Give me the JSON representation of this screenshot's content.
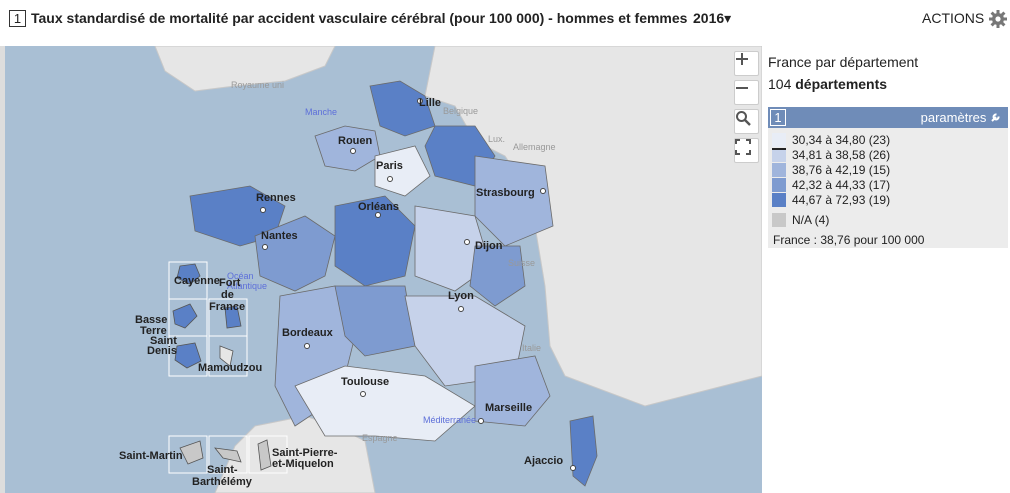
{
  "header": {
    "index": "1",
    "title": "Taux standardisé de mortalité par accident vasculaire cérébral (pour 100 000) - hommes et femmes",
    "year": "2016",
    "year_caret": "▾",
    "actions": "ACTIONS",
    "actions_icon": "gear-icon"
  },
  "map": {
    "controls": [
      "zoom-in",
      "zoom-out",
      "search",
      "fullscreen"
    ],
    "sea_labels": {
      "royaume_uni": "Royaume uni",
      "manche": "Manche",
      "belgique": "Belgique",
      "lux": "Lux.",
      "allemagne": "Allemagne",
      "suisse": "Suisse",
      "italie": "Italie",
      "espagne": "Espagne",
      "mediterranee": "Méditerranée",
      "ocean_1": "Océan",
      "ocean_2": "Atlantique"
    },
    "cities": {
      "lille": "Lille",
      "rouen": "Rouen",
      "paris": "Paris",
      "strasbourg": "Strasbourg",
      "rennes": "Rennes",
      "orleans": "Orléans",
      "nantes": "Nantes",
      "dijon": "Dijon",
      "lyon": "Lyon",
      "bordeaux": "Bordeaux",
      "toulouse": "Toulouse",
      "marseille": "Marseille",
      "ajaccio": "Ajaccio"
    },
    "overseas": {
      "cayenne": "Cayenne",
      "fort_de_france_1": "Fort",
      "fort_de_france_2": "de",
      "fort_de_france_3": "France",
      "basse_terre_1": "Basse",
      "basse_terre_2": "Terre",
      "saint_denis_1": "Saint",
      "saint_denis_2": "Denis",
      "mamoudzou": "Mamoudzou",
      "saint_martin": "Saint-Martin",
      "saint_barthelemy_1": "Saint-",
      "saint_barthelemy_2": "Barthélémy",
      "spm_1": "Saint-Pierre-",
      "spm_2": "et-Miquelon"
    }
  },
  "panel": {
    "scope": "France par département",
    "count_num": "104",
    "count_unit": "départements",
    "legend_index": "1",
    "legend_params": "paramètres",
    "classes": [
      {
        "label": "30,34 à 34,80 (23)",
        "color": "#e8edf6"
      },
      {
        "label": "34,81 à 38,58 (26)",
        "color": "#c6d2ea"
      },
      {
        "label": "38,76 à 42,19 (15)",
        "color": "#a0b5dc"
      },
      {
        "label": "42,32 à 44,33 (17)",
        "color": "#7e9bd0"
      },
      {
        "label": "44,67 à 72,93 (19)",
        "color": "#5a80c6"
      },
      {
        "label": "N/A (4)",
        "color": "#c8c8c8"
      }
    ],
    "footer": "France : 38,76 pour 100 000"
  }
}
